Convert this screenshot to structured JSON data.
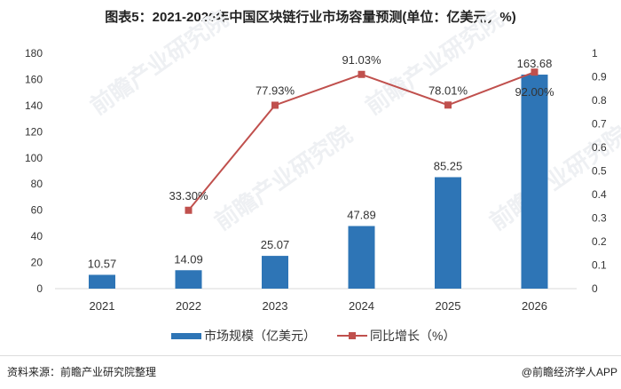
{
  "title": "图表5：2021-2026年中国区块链行业市场容量预测(单位：亿美元，%)",
  "source": "资料来源：前瞻产业研究院整理",
  "credit": "@前瞻经济学人APP",
  "watermark": "前瞻产业研究院",
  "chart_data": {
    "type": "bar+line",
    "categories": [
      "2021",
      "2022",
      "2023",
      "2024",
      "2025",
      "2026"
    ],
    "series": [
      {
        "name": "市场规模（亿美元）",
        "type": "bar",
        "axis": "left",
        "color": "#2E75B6",
        "values": [
          10.57,
          14.09,
          25.07,
          47.89,
          85.25,
          163.68
        ],
        "labels": [
          "10.57",
          "14.09",
          "25.07",
          "47.89",
          "85.25",
          "163.68"
        ]
      },
      {
        "name": "同比增长（%）",
        "type": "line",
        "axis": "right",
        "color": "#C0504D",
        "values": [
          null,
          0.333,
          0.7793,
          0.9103,
          0.7801,
          0.92
        ],
        "labels": [
          null,
          "33.30%",
          "77.93%",
          "91.03%",
          "78.01%",
          "92.00%"
        ]
      }
    ],
    "ylim": [
      0,
      180
    ],
    "yticks": [
      "0",
      "20",
      "40",
      "60",
      "80",
      "100",
      "120",
      "140",
      "160",
      "180"
    ],
    "y2lim": [
      0,
      1
    ],
    "y2ticks": [
      "0",
      "0.1",
      "0.2",
      "0.3",
      "0.4",
      "0.5",
      "0.6",
      "0.7",
      "0.8",
      "0.9",
      "1"
    ],
    "grid": false,
    "legend": "bottom"
  }
}
